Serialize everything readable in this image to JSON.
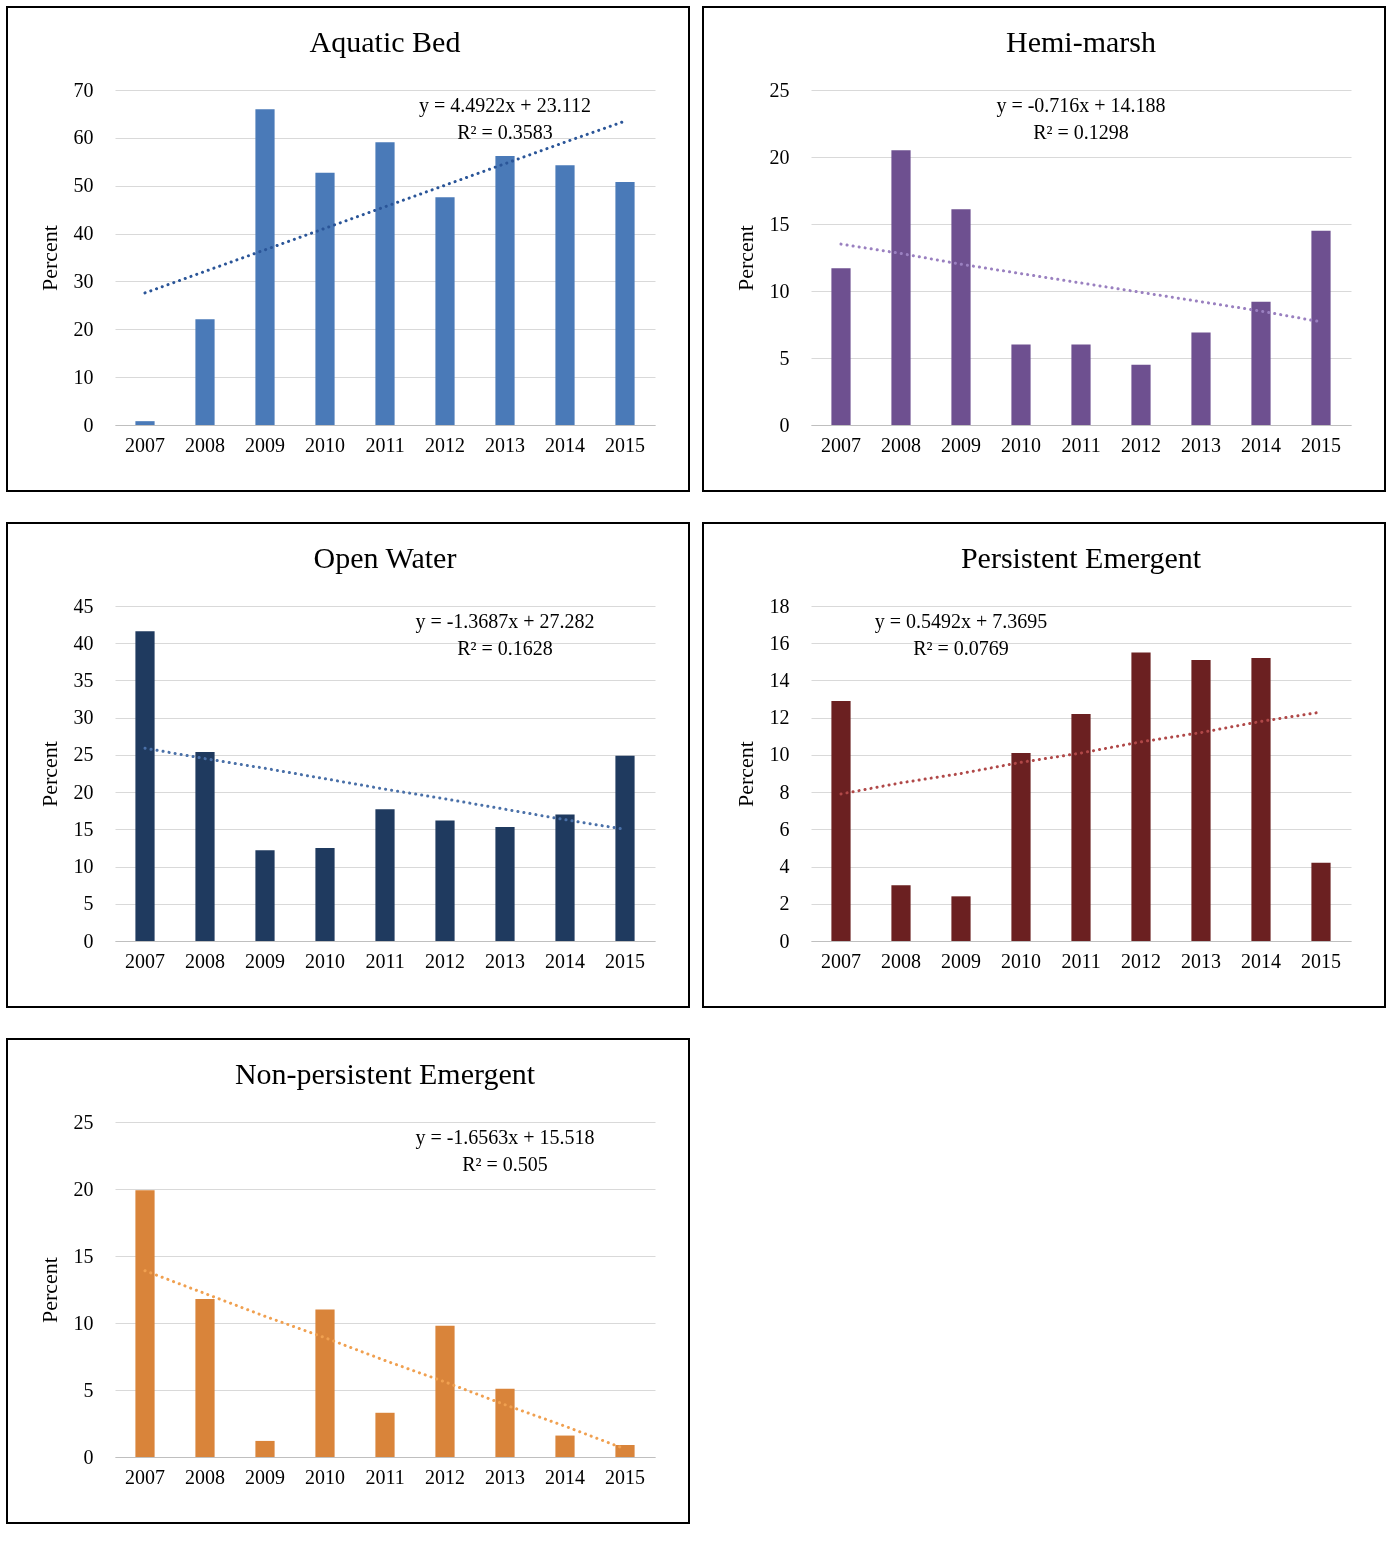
{
  "chart_data": [
    {
      "type": "bar",
      "title": "Aquatic Bed",
      "ylabel": "Percent",
      "categories": [
        "2007",
        "2008",
        "2009",
        "2010",
        "2011",
        "2012",
        "2013",
        "2014",
        "2015"
      ],
      "ylim": [
        0,
        70
      ],
      "yticks": [
        0,
        10,
        20,
        30,
        40,
        50,
        60,
        70
      ],
      "grid": "y",
      "series": [
        {
          "color": "#4a7ab8",
          "values": [
            0.8,
            22.1,
            66,
            52.7,
            59.1,
            47.6,
            56.2,
            54.3,
            50.8
          ]
        },
        {
          "type": "line",
          "line_style": "dotted",
          "color": "#2a5598",
          "values": [
            27.6,
            32.1,
            36.6,
            41.1,
            45.6,
            50.1,
            54.6,
            59.1,
            63.5
          ]
        }
      ],
      "annotations": [
        "y = 4.4922x + 23.112",
        "R² = 0.3583"
      ]
    },
    {
      "type": "bar",
      "title": "Hemi-marsh",
      "ylabel": "Percent",
      "categories": [
        "2007",
        "2008",
        "2009",
        "2010",
        "2011",
        "2012",
        "2013",
        "2014",
        "2015"
      ],
      "ylim": [
        0,
        25
      ],
      "yticks": [
        0,
        5,
        10,
        15,
        20,
        25
      ],
      "grid": "y",
      "series": [
        {
          "color": "#6e5090",
          "values": [
            11.7,
            20.5,
            16.1,
            6.0,
            6.0,
            4.5,
            6.9,
            9.2,
            14.5
          ]
        },
        {
          "type": "line",
          "line_style": "dotted",
          "color": "#9a80c0",
          "values": [
            13.5,
            12.8,
            12.0,
            11.3,
            10.6,
            9.9,
            9.2,
            8.5,
            7.7
          ]
        }
      ],
      "annotations": [
        "y = -0.716x + 14.188",
        "R² = 0.1298"
      ]
    },
    {
      "type": "bar",
      "title": "Open Water",
      "ylabel": "Percent",
      "categories": [
        "2007",
        "2008",
        "2009",
        "2010",
        "2011",
        "2012",
        "2013",
        "2014",
        "2015"
      ],
      "ylim": [
        0,
        45
      ],
      "yticks": [
        0,
        5,
        10,
        15,
        20,
        25,
        30,
        35,
        40,
        45
      ],
      "grid": "y",
      "series": [
        {
          "color": "#1f3a5f",
          "values": [
            41.6,
            25.4,
            12.2,
            12.5,
            17.7,
            16.2,
            15.3,
            17.0,
            24.9
          ]
        },
        {
          "type": "line",
          "line_style": "dotted",
          "color": "#4a70a8",
          "values": [
            25.9,
            24.5,
            23.2,
            21.8,
            20.4,
            19.1,
            17.7,
            16.3,
            15.0
          ]
        }
      ],
      "annotations": [
        "y = -1.3687x + 27.282",
        "R² = 0.1628"
      ]
    },
    {
      "type": "bar",
      "title": "Persistent Emergent",
      "ylabel": "Percent",
      "categories": [
        "2007",
        "2008",
        "2009",
        "2010",
        "2011",
        "2012",
        "2013",
        "2014",
        "2015"
      ],
      "ylim": [
        0,
        18
      ],
      "yticks": [
        0,
        2,
        4,
        6,
        8,
        10,
        12,
        14,
        16,
        18
      ],
      "grid": "y",
      "series": [
        {
          "color": "#6b2021",
          "values": [
            12.9,
            3.0,
            2.4,
            10.1,
            12.2,
            15.5,
            15.1,
            15.2,
            4.2
          ]
        },
        {
          "type": "line",
          "line_style": "dotted",
          "color": "#b04848",
          "values": [
            7.9,
            8.5,
            9.0,
            9.6,
            10.1,
            10.7,
            11.2,
            11.8,
            12.3
          ]
        }
      ],
      "annotations": [
        "y = 0.5492x + 7.3695",
        "R² = 0.0769"
      ]
    },
    {
      "type": "bar",
      "title": "Non-persistent Emergent",
      "ylabel": "Percent",
      "categories": [
        "2007",
        "2008",
        "2009",
        "2010",
        "2011",
        "2012",
        "2013",
        "2014",
        "2015"
      ],
      "ylim": [
        0,
        25
      ],
      "yticks": [
        0,
        5,
        10,
        15,
        20,
        25
      ],
      "grid": "y",
      "series": [
        {
          "color": "#d9843a",
          "values": [
            19.9,
            11.8,
            1.2,
            11.0,
            3.3,
            9.8,
            5.1,
            1.6,
            0.9
          ]
        },
        {
          "type": "line",
          "line_style": "dotted",
          "color": "#f0a050",
          "values": [
            13.9,
            12.2,
            10.5,
            8.9,
            7.2,
            5.6,
            3.9,
            2.3,
            0.6
          ]
        }
      ],
      "annotations": [
        "y = -1.6563x + 15.518",
        "R² = 0.505"
      ]
    }
  ]
}
